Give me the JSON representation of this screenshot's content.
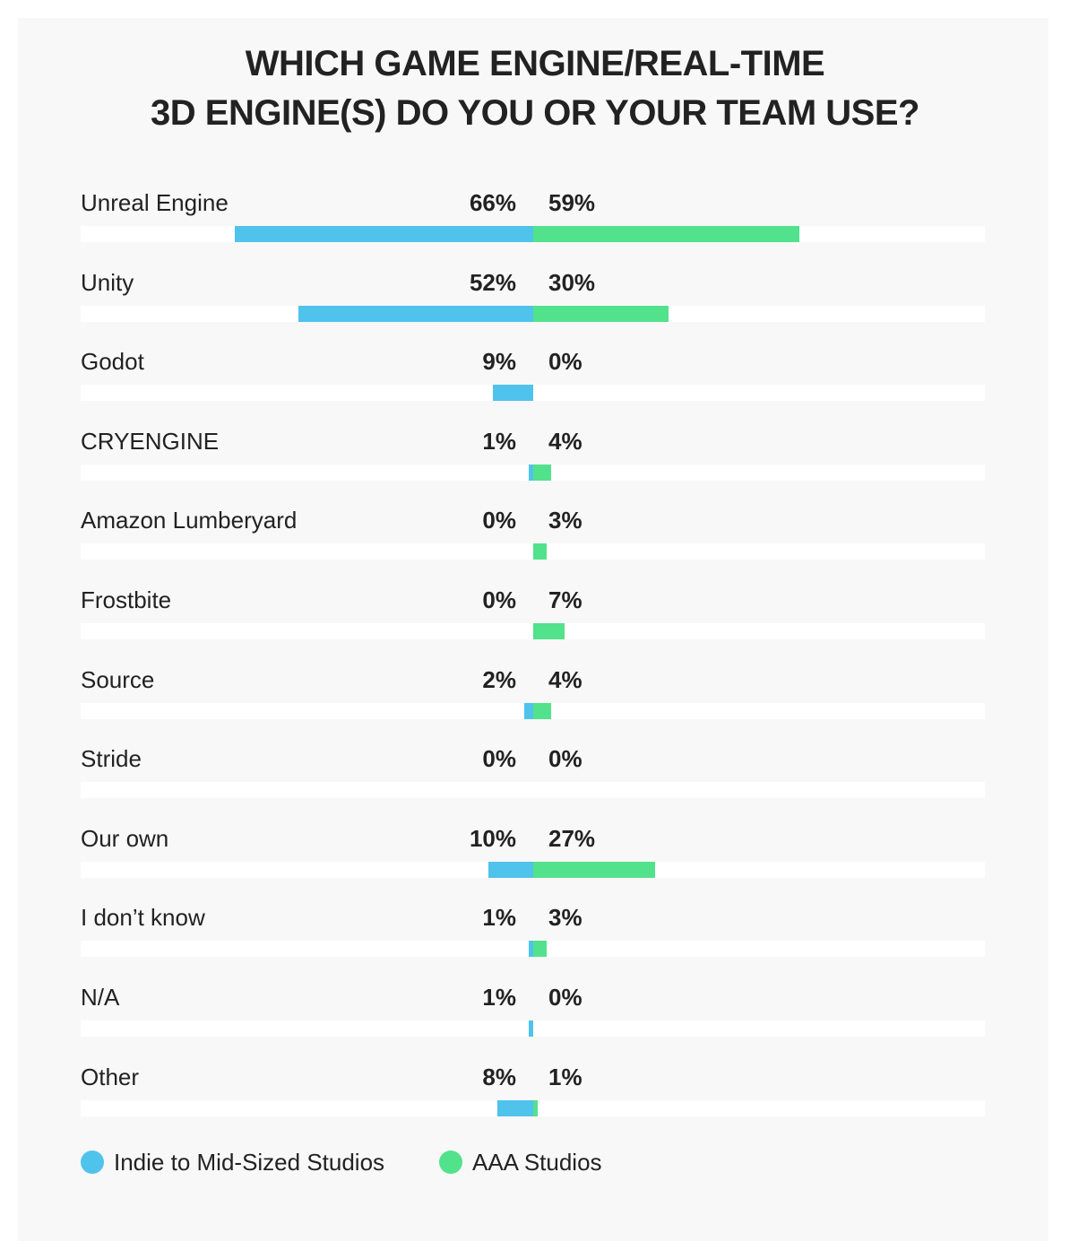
{
  "title_lines": [
    "WHICH GAME ENGINE/REAL-TIME",
    "3D ENGINE(S) DO YOU OR YOUR TEAM USE?"
  ],
  "colors": {
    "indie": "#4fc3ec",
    "aaa": "#52e28c",
    "track": "#ffffff",
    "text": "#222222"
  },
  "chart_data": {
    "type": "bar",
    "orientation": "diverging-horizontal",
    "title": "WHICH GAME ENGINE/REAL-TIME 3D ENGINE(S) DO YOU OR YOUR TEAM USE?",
    "categories": [
      "Unreal Engine",
      "Unity",
      "Godot",
      "CRYENGINE",
      "Amazon Lumberyard",
      "Frostbite",
      "Source",
      "Stride",
      "Our own",
      "I don’t know",
      "N/A",
      "Other"
    ],
    "series": [
      {
        "name": "Indie to Mid-Sized Studios",
        "values": [
          66,
          52,
          9,
          1,
          0,
          0,
          2,
          0,
          10,
          1,
          1,
          8
        ],
        "labels": [
          "66%",
          "52%",
          "9%",
          "1%",
          "0%",
          "0%",
          "2%",
          "0%",
          "10%",
          "1%",
          "1%",
          "8%"
        ]
      },
      {
        "name": "AAA Studios",
        "values": [
          59,
          30,
          0,
          4,
          3,
          7,
          4,
          0,
          27,
          3,
          0,
          1
        ],
        "labels": [
          "59%",
          "30%",
          "0%",
          "4%",
          "3%",
          "7%",
          "4%",
          "0%",
          "27%",
          "3%",
          "0%",
          "1%"
        ]
      }
    ],
    "xlim": [
      -100,
      100
    ],
    "legend_position": "bottom-left",
    "grid": false
  }
}
